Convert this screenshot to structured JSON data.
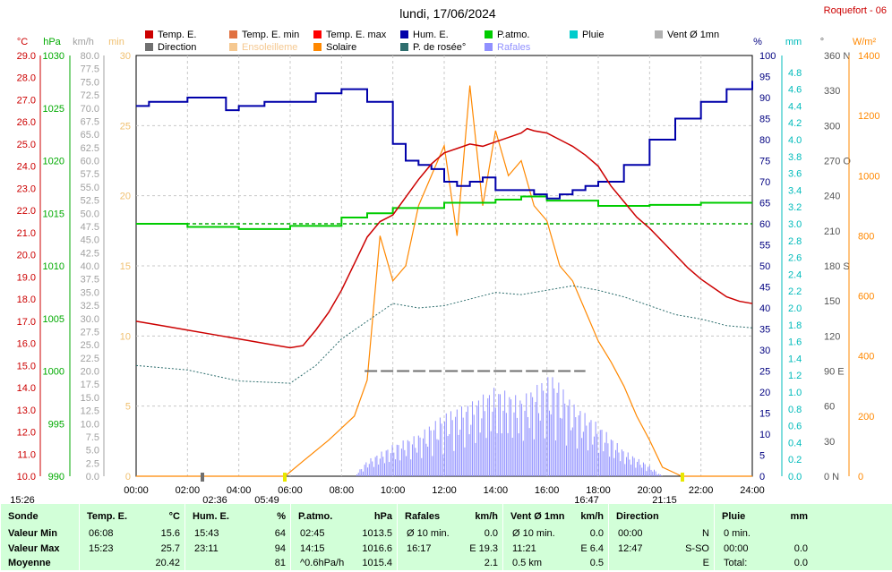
{
  "station": "Roquefort - 06",
  "title": "lundi, 17/06/2024",
  "legend": [
    {
      "label": "Temp. E.",
      "color": "#cc0000"
    },
    {
      "label": "Temp. E. min",
      "color": "#e07040"
    },
    {
      "label": "Temp. E. max",
      "color": "#ff0000"
    },
    {
      "label": "Hum. E.",
      "color": "#0000aa"
    },
    {
      "label": "P.atmo.",
      "color": "#00cc00"
    },
    {
      "label": "Pluie",
      "color": "#00cccc"
    },
    {
      "label": "Vent Ø 1mn",
      "color": "#b0b0b0"
    },
    {
      "label": "Direction",
      "color": "#707070"
    },
    {
      "label": "Ensoleilleme",
      "color": "#f5c890"
    },
    {
      "label": "Solaire",
      "color": "#ff8800"
    },
    {
      "label": "P. de rosée°",
      "color": "#2e6e6e"
    },
    {
      "label": "Rafales",
      "color": "#9090ff"
    }
  ],
  "axes": {
    "temp": {
      "unit": "°C",
      "ticks": [
        "29.0",
        "28.0",
        "27.0",
        "26.0",
        "25.0",
        "24.0",
        "23.0",
        "22.0",
        "21.0",
        "20.0",
        "19.0",
        "18.0",
        "17.0",
        "16.0",
        "15.0",
        "14.0",
        "13.0",
        "12.0",
        "11.0",
        "10.0"
      ],
      "color": "#cc0000"
    },
    "hpa": {
      "unit": "hPa",
      "ticks": [
        "1030",
        "1025",
        "1020",
        "1015",
        "1010",
        "1005",
        "1000",
        "995",
        "990"
      ],
      "color": "#00aa00"
    },
    "kmh": {
      "unit": "km/h",
      "ticks": [
        "80.0",
        "77.5",
        "75.0",
        "72.5",
        "70.0",
        "67.5",
        "65.0",
        "62.5",
        "60.0",
        "57.5",
        "55.0",
        "52.5",
        "50.0",
        "47.5",
        "45.0",
        "42.5",
        "40.0",
        "37.5",
        "35.0",
        "32.5",
        "30.0",
        "27.5",
        "25.0",
        "22.5",
        "20.0",
        "17.5",
        "15.0",
        "12.5",
        "10.0",
        "7.5",
        "5.0",
        "2.5",
        "0.0"
      ],
      "color": "#a0a0a0"
    },
    "min": {
      "unit": "min",
      "ticks": [
        "30",
        "25",
        "20",
        "15",
        "10",
        "5",
        "0"
      ],
      "color": "#f0c070"
    },
    "pct": {
      "unit": "%",
      "ticks": [
        "100",
        "95",
        "90",
        "85",
        "80",
        "75",
        "70",
        "65",
        "60",
        "55",
        "50",
        "45",
        "40",
        "35",
        "30",
        "25",
        "20",
        "15",
        "10",
        "5",
        "0"
      ],
      "color": "#000080"
    },
    "mm": {
      "unit": "mm",
      "ticks": [
        "4.8",
        "4.6",
        "4.4",
        "4.2",
        "4.0",
        "3.8",
        "3.6",
        "3.4",
        "3.2",
        "3.0",
        "2.8",
        "2.6",
        "2.4",
        "2.2",
        "2.0",
        "1.8",
        "1.6",
        "1.4",
        "1.2",
        "1.0",
        "0.8",
        "0.6",
        "0.4",
        "0.2",
        "0.0"
      ],
      "color": "#00bbbb"
    },
    "deg": {
      "unit": "°",
      "ticks": [
        "360 N",
        "330",
        "300",
        "270 O",
        "240",
        "210",
        "180 S",
        "150",
        "120",
        "90  E",
        "60",
        "30",
        "0  N"
      ],
      "color": "#555555"
    },
    "wm2": {
      "unit": "W/m²",
      "ticks": [
        "1400",
        "1200",
        "1000",
        "800",
        "600",
        "400",
        "200",
        "0"
      ],
      "color": "#ff8800"
    },
    "time": [
      "00:00",
      "02:00",
      "04:00",
      "06:00",
      "08:00",
      "10:00",
      "12:00",
      "14:00",
      "16:00",
      "18:00",
      "20:00",
      "22:00",
      "24:00"
    ]
  },
  "markers": [
    "15:26",
    "02:36",
    "05:49",
    "16:47",
    "21:15"
  ],
  "chart_data": {
    "type": "line",
    "x_unit": "hour",
    "series": [
      {
        "name": "Temp. E.",
        "axis": "°C",
        "points": [
          [
            0,
            17.0
          ],
          [
            1,
            16.8
          ],
          [
            2,
            16.6
          ],
          [
            3,
            16.4
          ],
          [
            4,
            16.2
          ],
          [
            5,
            16.0
          ],
          [
            6,
            15.8
          ],
          [
            6.5,
            15.9
          ],
          [
            7,
            16.6
          ],
          [
            7.5,
            17.4
          ],
          [
            8,
            18.4
          ],
          [
            8.5,
            19.6
          ],
          [
            9,
            20.8
          ],
          [
            9.5,
            21.5
          ],
          [
            10,
            21.8
          ],
          [
            10.5,
            22.6
          ],
          [
            11,
            23.4
          ],
          [
            11.5,
            24.1
          ],
          [
            12,
            24.6
          ],
          [
            12.5,
            24.8
          ],
          [
            13,
            25.0
          ],
          [
            13.5,
            24.9
          ],
          [
            14,
            25.1
          ],
          [
            14.5,
            25.3
          ],
          [
            15,
            25.5
          ],
          [
            15.23,
            25.7
          ],
          [
            15.5,
            25.6
          ],
          [
            16,
            25.5
          ],
          [
            16.5,
            25.2
          ],
          [
            17,
            24.9
          ],
          [
            17.5,
            24.5
          ],
          [
            18,
            24.0
          ],
          [
            18.5,
            23.1
          ],
          [
            19,
            22.4
          ],
          [
            19.5,
            21.7
          ],
          [
            20,
            21.2
          ],
          [
            20.5,
            20.6
          ],
          [
            21,
            20.0
          ],
          [
            21.5,
            19.4
          ],
          [
            22,
            18.9
          ],
          [
            22.5,
            18.5
          ],
          [
            23,
            18.1
          ],
          [
            23.5,
            17.9
          ],
          [
            24,
            17.8
          ]
        ]
      },
      {
        "name": "Hum. E.",
        "axis": "%",
        "points": [
          [
            0,
            88
          ],
          [
            0.5,
            89
          ],
          [
            1,
            89
          ],
          [
            2,
            90
          ],
          [
            3,
            90
          ],
          [
            3.5,
            87
          ],
          [
            4,
            88
          ],
          [
            5,
            89
          ],
          [
            6,
            89
          ],
          [
            7,
            91
          ],
          [
            8,
            92
          ],
          [
            9,
            89
          ],
          [
            10,
            79
          ],
          [
            10.5,
            75
          ],
          [
            11,
            74
          ],
          [
            11.5,
            73
          ],
          [
            12,
            70
          ],
          [
            12.5,
            69
          ],
          [
            13,
            70
          ],
          [
            13.5,
            71
          ],
          [
            14,
            68
          ],
          [
            14.5,
            68
          ],
          [
            15,
            68
          ],
          [
            15.5,
            67
          ],
          [
            16,
            66
          ],
          [
            16.5,
            67
          ],
          [
            17,
            68
          ],
          [
            17.5,
            69
          ],
          [
            18,
            70
          ],
          [
            19,
            74
          ],
          [
            20,
            80
          ],
          [
            21,
            85
          ],
          [
            22,
            89
          ],
          [
            23,
            92
          ],
          [
            24,
            94
          ]
        ]
      },
      {
        "name": "P.atmo.",
        "axis": "hPa",
        "points": [
          [
            0,
            1014.0
          ],
          [
            2,
            1013.7
          ],
          [
            4,
            1013.5
          ],
          [
            6,
            1013.8
          ],
          [
            8,
            1014.6
          ],
          [
            9,
            1015.0
          ],
          [
            10,
            1015.5
          ],
          [
            12,
            1016.0
          ],
          [
            14,
            1016.3
          ],
          [
            15,
            1016.6
          ],
          [
            16,
            1016.2
          ],
          [
            18,
            1015.7
          ],
          [
            20,
            1015.8
          ],
          [
            22,
            1016.0
          ],
          [
            24,
            1016.0
          ]
        ]
      },
      {
        "name": "P. de rosée°",
        "axis": "°C",
        "points": [
          [
            0,
            15.0
          ],
          [
            2,
            14.8
          ],
          [
            4,
            14.3
          ],
          [
            6,
            14.2
          ],
          [
            7,
            15.0
          ],
          [
            8,
            16.2
          ],
          [
            9,
            17.0
          ],
          [
            10,
            17.8
          ],
          [
            11,
            17.6
          ],
          [
            12,
            17.7
          ],
          [
            13,
            18.0
          ],
          [
            14,
            18.3
          ],
          [
            15,
            18.2
          ],
          [
            16,
            18.4
          ],
          [
            17,
            18.6
          ],
          [
            18,
            18.4
          ],
          [
            19,
            18.1
          ],
          [
            20,
            17.7
          ],
          [
            21,
            17.3
          ],
          [
            22,
            17.1
          ],
          [
            23,
            16.8
          ],
          [
            24,
            16.7
          ]
        ]
      },
      {
        "name": "Solaire",
        "axis": "W/m²",
        "points": [
          [
            0,
            0
          ],
          [
            5.8,
            0
          ],
          [
            6.5,
            50
          ],
          [
            7.5,
            120
          ],
          [
            8.5,
            200
          ],
          [
            9,
            320
          ],
          [
            9.5,
            800
          ],
          [
            10,
            650
          ],
          [
            10.5,
            700
          ],
          [
            11,
            900
          ],
          [
            11.5,
            1000
          ],
          [
            12,
            1100
          ],
          [
            12.5,
            800
          ],
          [
            13,
            1300
          ],
          [
            13.5,
            900
          ],
          [
            14,
            1150
          ],
          [
            14.5,
            1000
          ],
          [
            15,
            1050
          ],
          [
            15.5,
            900
          ],
          [
            16,
            850
          ],
          [
            16.5,
            700
          ],
          [
            17,
            650
          ],
          [
            17.5,
            550
          ],
          [
            18,
            450
          ],
          [
            18.5,
            380
          ],
          [
            19,
            300
          ],
          [
            19.5,
            200
          ],
          [
            20,
            120
          ],
          [
            20.5,
            30
          ],
          [
            21,
            10
          ],
          [
            21.25,
            0
          ],
          [
            24,
            0
          ]
        ]
      },
      {
        "name": "Rafales",
        "axis": "km/h",
        "points": [
          [
            0,
            0
          ],
          [
            8.5,
            0
          ],
          [
            9,
            3
          ],
          [
            10,
            6
          ],
          [
            11,
            8
          ],
          [
            12,
            12
          ],
          [
            13,
            14
          ],
          [
            14,
            17
          ],
          [
            15,
            15
          ],
          [
            16,
            19
          ],
          [
            16.3,
            19.3
          ],
          [
            17,
            14
          ],
          [
            18,
            10
          ],
          [
            19,
            5
          ],
          [
            20,
            2
          ],
          [
            20.5,
            0
          ],
          [
            24,
            0
          ]
        ]
      },
      {
        "name": "Direction",
        "axis": "°",
        "points": [
          [
            8.9,
            90
          ],
          [
            10,
            90
          ],
          [
            12,
            90
          ],
          [
            14,
            90
          ],
          [
            16,
            90
          ],
          [
            17.5,
            90
          ]
        ]
      }
    ]
  },
  "table": {
    "row_labels": [
      "Sonde",
      "Valeur Min",
      "Valeur Max",
      "Moyenne"
    ],
    "columns": [
      {
        "title": "Temp. E.",
        "unit": "°C",
        "rows": [
          [
            "06:08",
            "15.6"
          ],
          [
            "15:23",
            "25.7"
          ],
          [
            "",
            "20.42"
          ]
        ]
      },
      {
        "title": "Hum. E.",
        "unit": "%",
        "rows": [
          [
            "15:43",
            "64"
          ],
          [
            "23:11",
            "94"
          ],
          [
            "",
            "81"
          ]
        ]
      },
      {
        "title": "P.atmo.",
        "unit": "hPa",
        "rows": [
          [
            "02:45",
            "1013.5"
          ],
          [
            "14:15",
            "1016.6"
          ],
          [
            "^0.6hPa/h",
            "1015.4"
          ]
        ]
      },
      {
        "title": "Rafales",
        "unit": "km/h",
        "rows": [
          [
            "Ø 10 min.",
            "0.0"
          ],
          [
            "16:17",
            "E 19.3"
          ],
          [
            "",
            "2.1"
          ]
        ]
      },
      {
        "title": "Vent Ø 1mn",
        "unit": "km/h",
        "rows": [
          [
            "Ø 10 min.",
            "0.0"
          ],
          [
            "11:21",
            "E 6.4"
          ],
          [
            "0.5 km",
            "0.5"
          ]
        ]
      },
      {
        "title": "Direction",
        "unit": "",
        "rows": [
          [
            "00:00",
            "N"
          ],
          [
            "12:47",
            "S-SO"
          ],
          [
            "",
            "E"
          ]
        ]
      },
      {
        "title": "Pluie",
        "unit": "mm",
        "rows": [
          [
            "0 min.",
            ""
          ],
          [
            "00:00",
            "0.0"
          ],
          [
            "Total:",
            "0.0"
          ]
        ]
      }
    ]
  }
}
